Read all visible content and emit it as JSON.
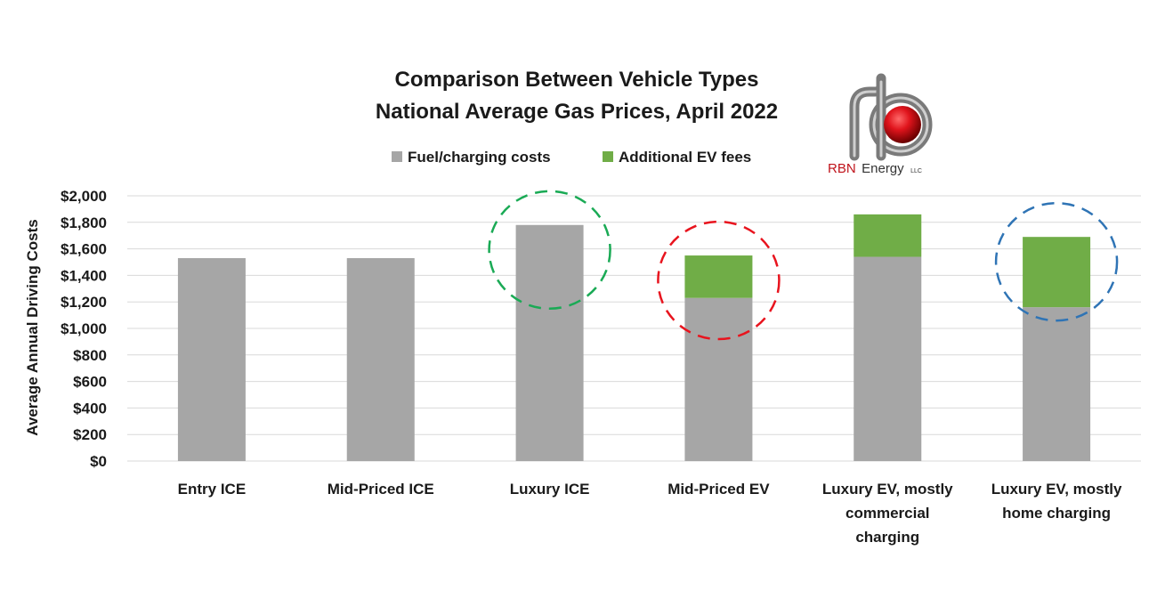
{
  "chart_data": {
    "type": "bar",
    "stacked": true,
    "title": "Comparison Between Vehicle Types",
    "subtitle": "National Average Gas Prices, April 2022",
    "ylabel": "Average Annual Driving Costs",
    "xlabel": "",
    "ylim": [
      0,
      2000
    ],
    "yticks": [
      0,
      200,
      400,
      600,
      800,
      1000,
      1200,
      1400,
      1600,
      1800,
      2000
    ],
    "ytick_labels": [
      "$0",
      "$200",
      "$400",
      "$600",
      "$800",
      "$1,000",
      "$1,200",
      "$1,400",
      "$1,600",
      "$1,800",
      "$2,000"
    ],
    "grid": true,
    "legend_position": "top",
    "categories": [
      [
        "Entry ICE"
      ],
      [
        "Mid-Priced ICE"
      ],
      [
        "Luxury ICE"
      ],
      [
        "Mid-Priced EV"
      ],
      [
        "Luxury EV, mostly",
        "commercial",
        "charging"
      ],
      [
        "Luxury EV, mostly",
        "home charging"
      ]
    ],
    "series": [
      {
        "name": "Fuel/charging costs",
        "color": "#a6a6a6",
        "values": [
          1530,
          1530,
          1780,
          1230,
          1540,
          1160
        ]
      },
      {
        "name": "Additional EV fees",
        "color": "#70ad47",
        "values": [
          0,
          0,
          0,
          320,
          320,
          530
        ]
      }
    ],
    "annotations": [
      {
        "type": "dashed-circle",
        "category_index": 2,
        "color": "#1aaa55"
      },
      {
        "type": "dashed-circle",
        "category_index": 3,
        "color": "#e8141e"
      },
      {
        "type": "dashed-circle",
        "category_index": 5,
        "color": "#2f74b5"
      }
    ]
  },
  "logo": {
    "brand": "RBN",
    "name": "Energy",
    "suffix": "LLC",
    "colors": {
      "pipe": "#7f7f7f",
      "ball": "#d4141c"
    }
  }
}
